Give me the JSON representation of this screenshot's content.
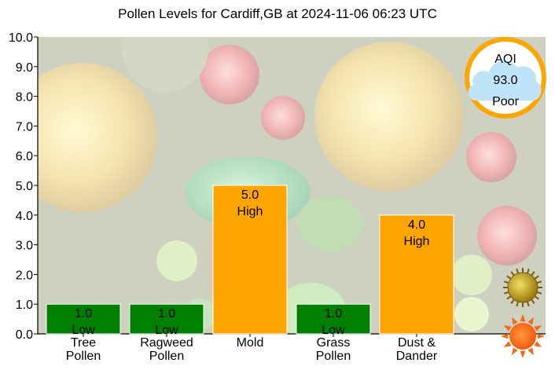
{
  "chart_data": {
    "type": "bar",
    "title": "Pollen Levels for Cardiff,GB at 2024-11-06 06:23 UTC",
    "categories": [
      [
        "Tree",
        "Pollen"
      ],
      [
        "Ragweed",
        "Pollen"
      ],
      [
        "Mold"
      ],
      [
        "Grass",
        "Pollen"
      ],
      [
        "Dust &",
        "Dander"
      ]
    ],
    "values": [
      1.0,
      1.0,
      5.0,
      1.0,
      4.0
    ],
    "value_labels": [
      "1.0",
      "1.0",
      "5.0",
      "1.0",
      "4.0"
    ],
    "levels": [
      "Low",
      "Low",
      "High",
      "Low",
      "High"
    ],
    "level_colors": {
      "Low": "#008000",
      "High": "#FFA500"
    },
    "ylim": [
      0,
      10
    ],
    "yticks": [
      "0.0",
      "1.0",
      "2.0",
      "3.0",
      "4.0",
      "5.0",
      "6.0",
      "7.0",
      "8.0",
      "9.0",
      "10.0"
    ],
    "grid": false,
    "legend": "none"
  },
  "aqi": {
    "label": "AQI",
    "value": "93.0",
    "category": "Poor",
    "ring_color": "#FFA500",
    "cloud_color": "#BFE3F8"
  },
  "icons": {
    "pollen": "pollen-grain-icon",
    "sun": "sun-icon"
  },
  "colors": {
    "plot_background": "#D8D8D8",
    "bar_edge": "#FFFFFF"
  }
}
